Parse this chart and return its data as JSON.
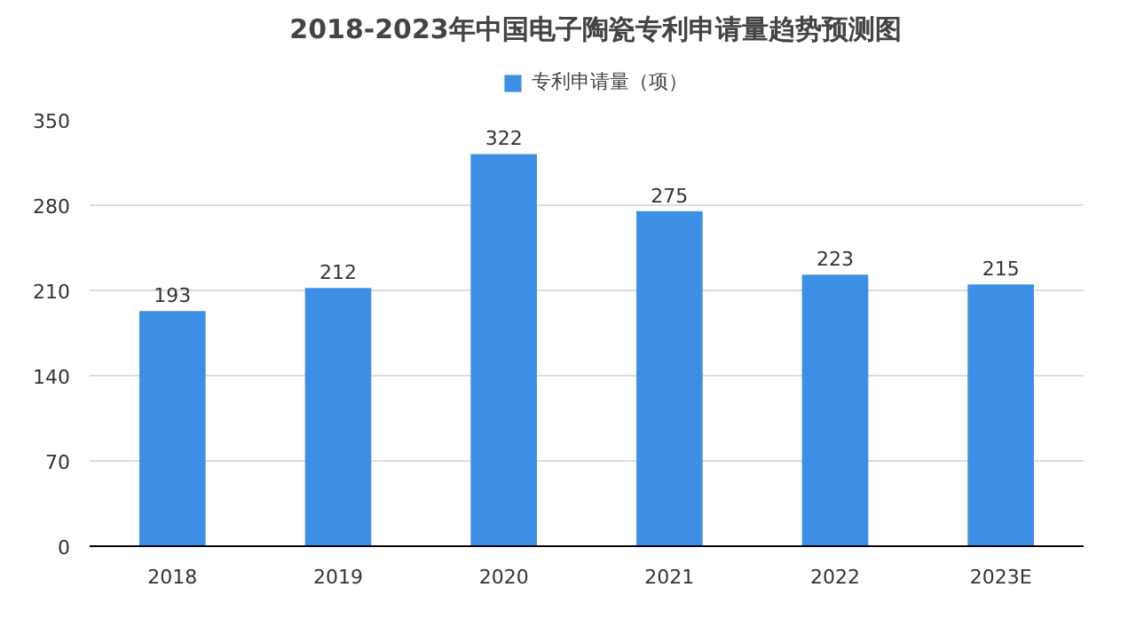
{
  "chart_data": {
    "type": "bar",
    "title": "2018-2023年中国电子陶瓷专利申请量趋势预测图",
    "categories": [
      "2018",
      "2019",
      "2020",
      "2021",
      "2022",
      "2023E"
    ],
    "series": [
      {
        "name": "专利申请量（项）",
        "color": "#3d8fe6",
        "values": [
          193,
          212,
          322,
          275,
          223,
          215
        ]
      }
    ],
    "ylim": [
      0,
      350
    ],
    "yticks": [
      0,
      70,
      140,
      210,
      280,
      350
    ],
    "grid": "y",
    "legend": "top",
    "data_labels": true
  }
}
